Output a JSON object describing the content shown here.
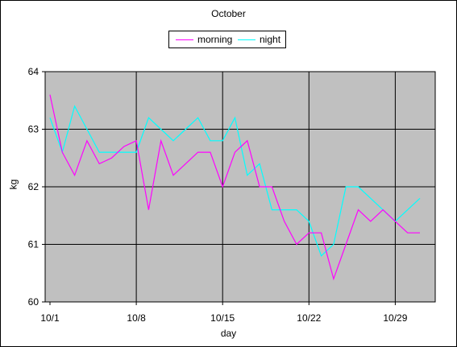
{
  "chart_data": {
    "type": "line",
    "title": "October",
    "xlabel": "day",
    "ylabel": "kg",
    "x_ticks": [
      "10/1",
      "10/8",
      "10/15",
      "10/22",
      "10/29"
    ],
    "y_ticks": [
      "60",
      "61",
      "62",
      "63",
      "64"
    ],
    "ylim": [
      60,
      64
    ],
    "x": [
      1,
      2,
      3,
      4,
      5,
      6,
      7,
      8,
      9,
      10,
      11,
      12,
      13,
      14,
      15,
      16,
      17,
      18,
      19,
      20,
      21,
      22,
      23,
      24,
      25,
      26,
      27,
      28,
      29,
      30,
      31
    ],
    "series": [
      {
        "name": "morning",
        "color": "#ff00ff",
        "values": [
          63.6,
          62.6,
          62.2,
          62.8,
          62.4,
          62.5,
          62.7,
          62.8,
          61.6,
          62.8,
          62.2,
          62.4,
          62.6,
          62.6,
          62.0,
          62.6,
          62.8,
          62.0,
          62.0,
          61.4,
          61.0,
          61.2,
          61.2,
          60.4,
          61.0,
          61.6,
          61.4,
          61.6,
          61.4,
          61.2,
          61.2
        ]
      },
      {
        "name": "night",
        "color": "#00ffff",
        "values": [
          63.2,
          62.6,
          63.4,
          63.0,
          62.6,
          62.6,
          62.6,
          62.6,
          63.2,
          63.0,
          62.8,
          63.0,
          63.2,
          62.8,
          62.8,
          63.2,
          62.2,
          62.4,
          61.6,
          61.6,
          61.6,
          61.4,
          60.8,
          61.0,
          62.0,
          62.0,
          61.8,
          61.6,
          61.4,
          61.6,
          61.8
        ]
      }
    ],
    "grid": true,
    "legend_position": "top-center",
    "plot_background": "#c0c0c0"
  }
}
